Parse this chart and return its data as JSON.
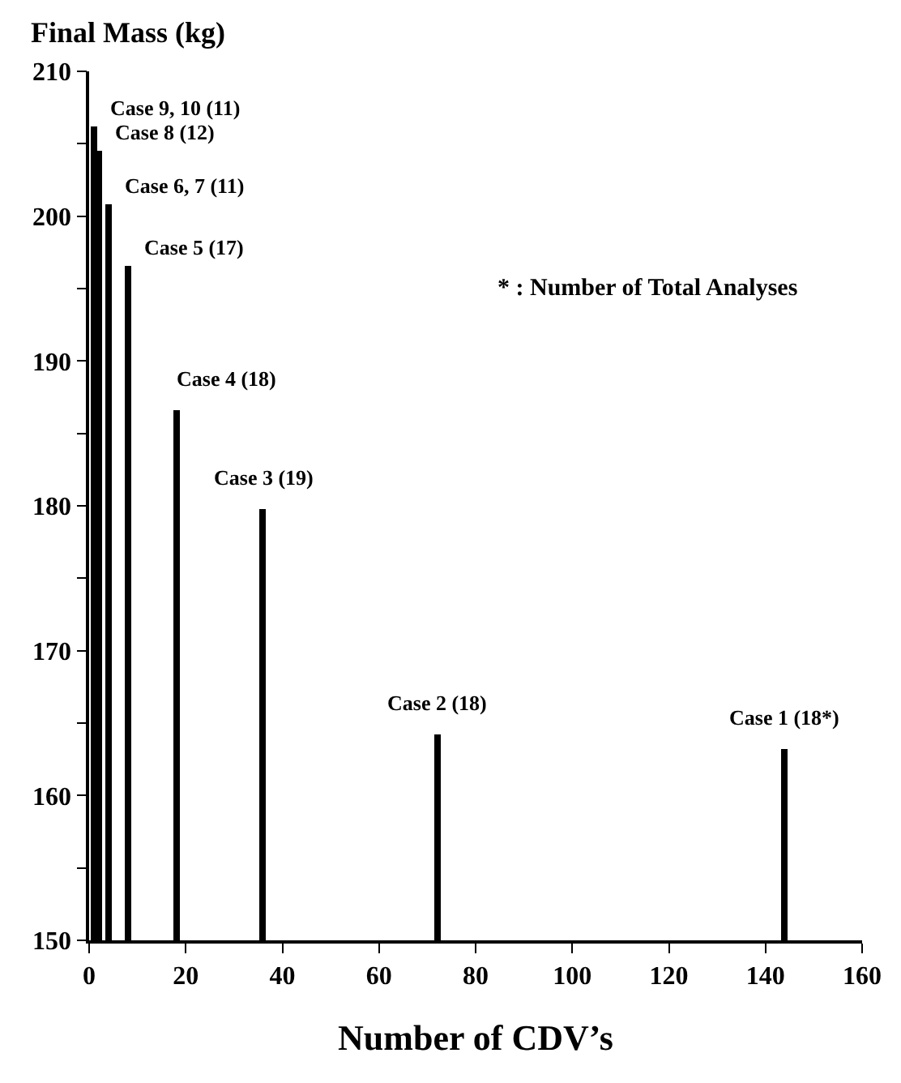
{
  "chart_data": {
    "type": "bar",
    "ylabel": "Final Mass (kg)",
    "xlabel": "Number of CDV’s",
    "x": [
      1,
      2,
      4,
      8,
      18,
      36,
      72,
      144
    ],
    "series": [
      {
        "color": "#000000",
        "values": [
          206.2,
          204.5,
          200.8,
          196.6,
          186.6,
          179.8,
          164.2,
          163.2
        ]
      }
    ],
    "xlim": [
      0,
      160
    ],
    "xticks": [
      0,
      20,
      40,
      60,
      80,
      100,
      120,
      140,
      160
    ],
    "ylim": [
      150,
      210
    ],
    "yticks": [
      150,
      {
        "value": 155,
        "label": null
      },
      160,
      {
        "value": 165,
        "label": null
      },
      170,
      {
        "value": 175,
        "label": null
      },
      180,
      {
        "value": 185,
        "label": null
      },
      190,
      {
        "value": 195,
        "label": null
      },
      200,
      {
        "value": 205,
        "label": null
      },
      210
    ],
    "annotations": [
      {
        "text": "Case 9, 10 (11)",
        "x": 1,
        "y": 206.2
      },
      {
        "text": "Case 8 (12)",
        "x": 2,
        "y": 204.5
      },
      {
        "text": "Case 6, 7 (11)",
        "x": 4,
        "y": 200.8
      },
      {
        "text": "Case 5 (17)",
        "x": 8,
        "y": 196.6
      },
      {
        "text": "Case 4 (18)",
        "x": 18,
        "y": 186.6
      },
      {
        "text": "Case 3 (19)",
        "x": 36,
        "y": 179.8
      },
      {
        "text": "Case 2 (18)",
        "x": 72,
        "y": 164.2
      },
      {
        "text": "Case 1 (18*)",
        "x": 144,
        "y": 163.2
      },
      "* : Number of Total Analyses"
    ]
  }
}
